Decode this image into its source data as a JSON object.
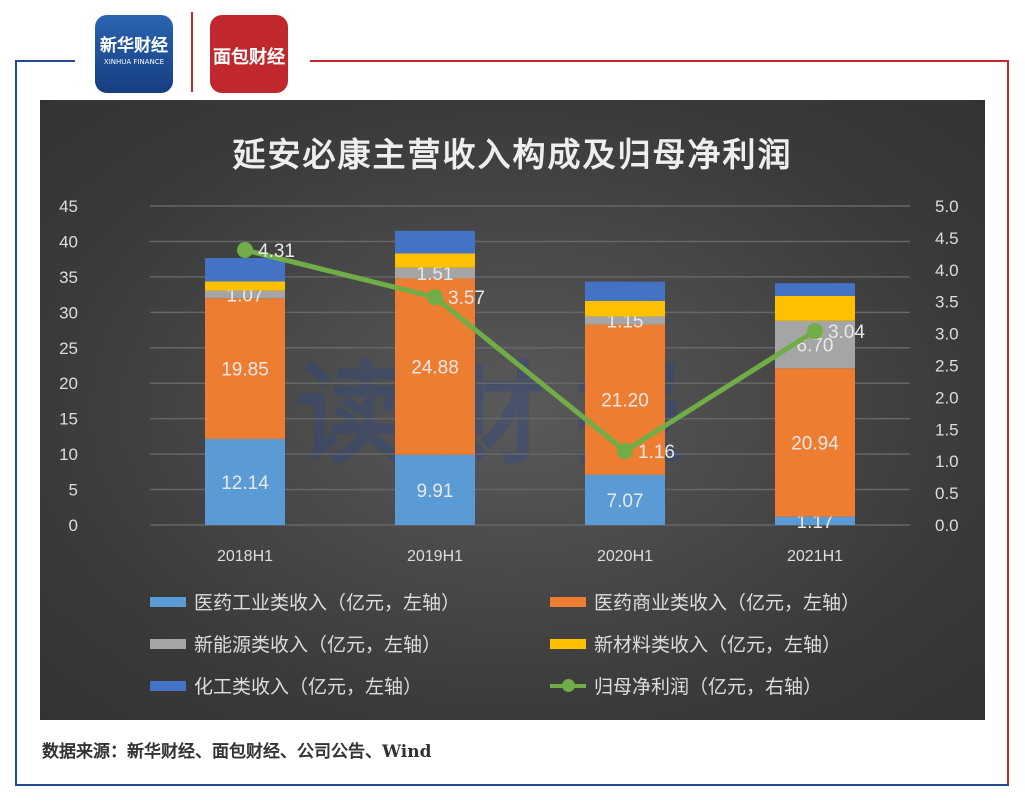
{
  "header": {
    "logo1": "新华财经",
    "logo1_sub": "XINHUA FINANCE",
    "logo2": "面包财经"
  },
  "watermark": "读财报",
  "source": "数据来源：新华财经、面包财经、公司公告、Wind",
  "chart_data": {
    "type": "bar",
    "title": "延安必康主营收入构成及归母净利润",
    "categories": [
      "2018H1",
      "2019H1",
      "2020H1",
      "2021H1"
    ],
    "ylim": [
      0,
      45
    ],
    "yticks": [
      "0",
      "5",
      "10",
      "15",
      "20",
      "25",
      "30",
      "35",
      "40",
      "45"
    ],
    "y2lim": [
      0,
      5
    ],
    "y2ticks": [
      "0.0",
      "0.5",
      "1.0",
      "1.5",
      "2.0",
      "2.5",
      "3.0",
      "3.5",
      "4.0",
      "4.5",
      "5.0"
    ],
    "series": [
      {
        "name": "医药工业类收入（亿元，左轴）",
        "color": "#5b9bd5",
        "values": [
          12.14,
          9.91,
          7.07,
          1.17
        ],
        "labels": [
          "12.14",
          "9.91",
          "7.07",
          "1.17"
        ]
      },
      {
        "name": "医药商业类收入（亿元，左轴）",
        "color": "#ed7d31",
        "values": [
          19.85,
          24.88,
          21.2,
          20.94
        ],
        "labels": [
          "19.85",
          "24.88",
          "21.20",
          "20.94"
        ]
      },
      {
        "name": "新能源类收入（亿元，左轴）",
        "color": "#a5a5a5",
        "values": [
          1.07,
          1.51,
          1.15,
          6.7
        ],
        "labels": [
          "1.07",
          "1.51",
          "1.15",
          "6.70"
        ]
      },
      {
        "name": "新材料类收入（亿元，左轴）",
        "color": "#ffc000",
        "values": [
          1.3,
          2.0,
          2.2,
          3.5
        ]
      },
      {
        "name": "化工类收入（亿元，左轴）",
        "color": "#4472c4",
        "values": [
          3.3,
          3.2,
          2.7,
          1.8
        ]
      },
      {
        "name": "归母净利润（亿元，右轴）",
        "color": "#70ad47",
        "type": "line",
        "axis": "right",
        "values": [
          4.31,
          3.57,
          1.16,
          3.04
        ],
        "labels": [
          "4.31",
          "3.57",
          "1.16",
          "3.04"
        ]
      }
    ],
    "legend": "bottom",
    "grid": true
  }
}
